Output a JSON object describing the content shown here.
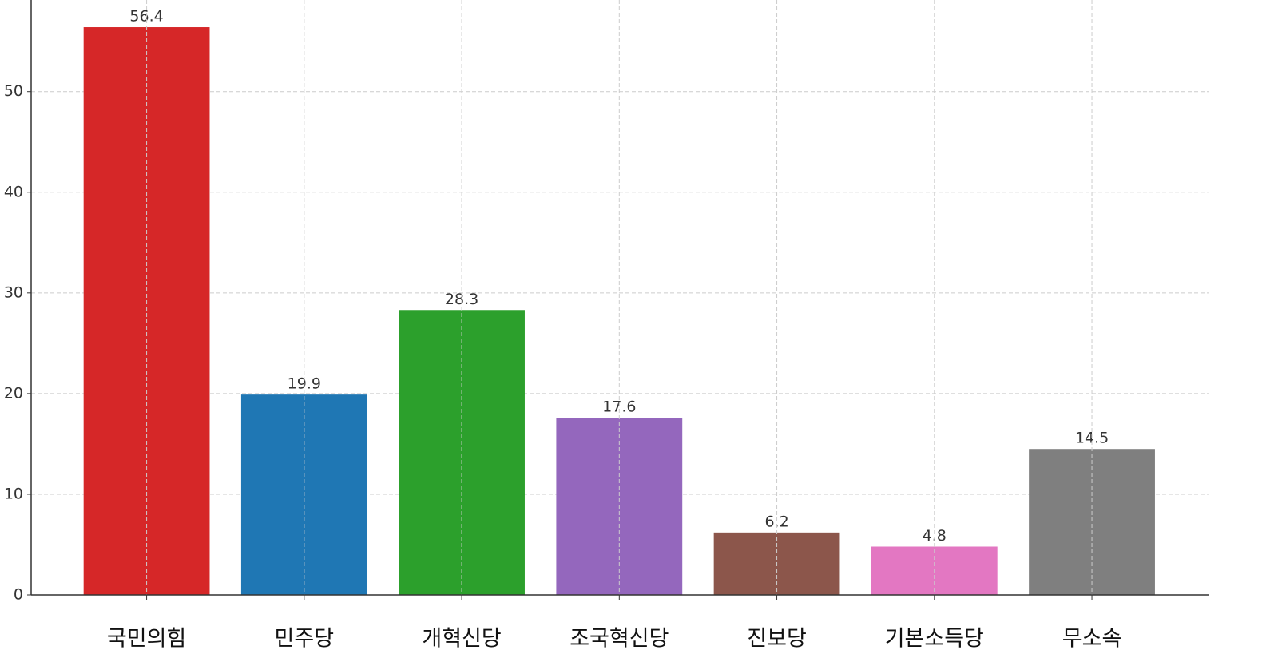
{
  "chart_data": {
    "type": "bar",
    "categories": [
      "국민의힘",
      "민주당",
      "개혁신당",
      "조국혁신당",
      "진보당",
      "기본소득당",
      "무소속"
    ],
    "values": [
      56.4,
      19.9,
      28.3,
      17.6,
      6.2,
      4.8,
      14.5
    ],
    "colors": [
      "#d62728",
      "#1f77b4",
      "#2ca02c",
      "#9467bd",
      "#8c564b",
      "#e377c2",
      "#7f7f7f"
    ],
    "ylim": [
      0,
      59.1
    ],
    "yticks": [
      0,
      10,
      20,
      30,
      40,
      50
    ],
    "grid": true
  }
}
